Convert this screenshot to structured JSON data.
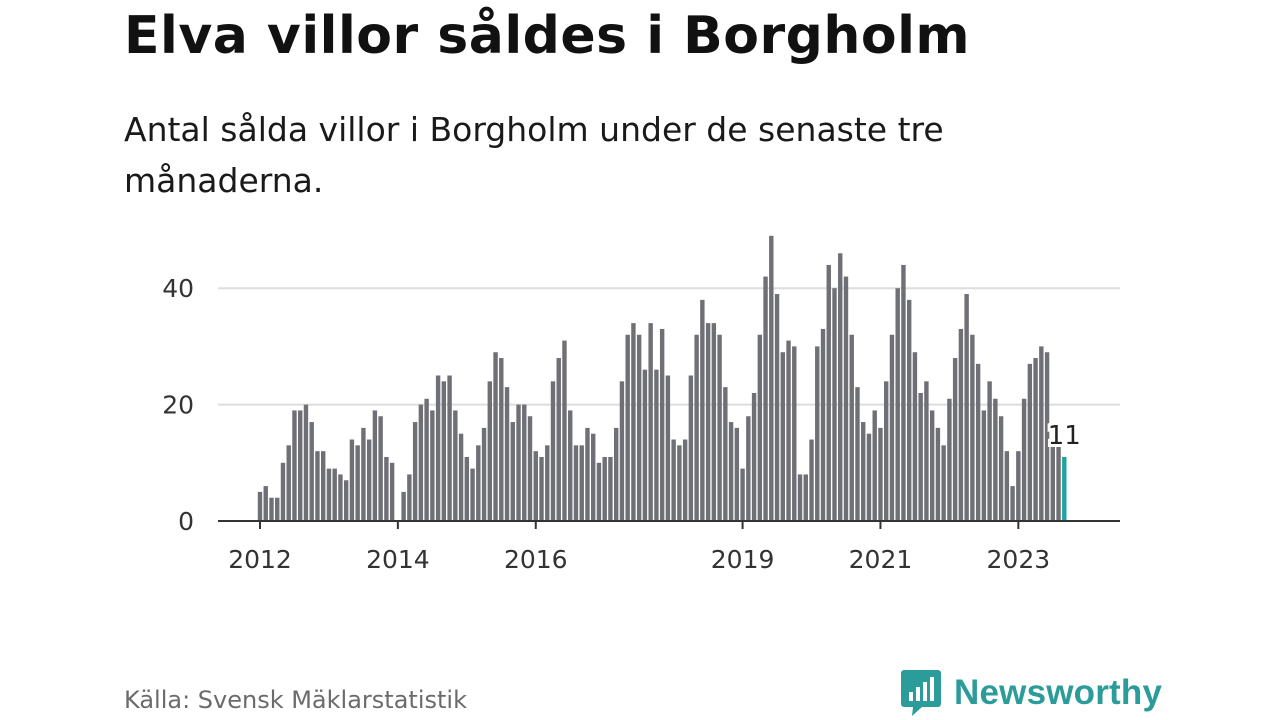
{
  "title": "Elva villor såldes i Borgholm",
  "subtitle": "Antal sålda villor i Borgholm under de senaste tre månaderna.",
  "source": "Källa: Svensk Mäklarstatistik",
  "brand": {
    "name": "Newsworthy",
    "icon": "newsworthy-logo-icon"
  },
  "colors": {
    "bar": "#6f6f76",
    "highlight": "#1fa3a0",
    "grid": "#dddddd",
    "axis": "#333333",
    "text": "#333333"
  },
  "chart_data": {
    "type": "bar",
    "title": "Elva villor såldes i Borgholm",
    "xlabel": "",
    "ylabel": "",
    "ylim": [
      0,
      50
    ],
    "yticks": [
      0,
      20,
      40
    ],
    "x_start": "2012-01",
    "xticks": [
      {
        "label": "2012",
        "index": 0
      },
      {
        "label": "2014",
        "index": 24
      },
      {
        "label": "2016",
        "index": 48
      },
      {
        "label": "2019",
        "index": 84
      },
      {
        "label": "2021",
        "index": 108
      },
      {
        "label": "2023",
        "index": 132
      }
    ],
    "values": [
      5,
      6,
      4,
      4,
      10,
      13,
      19,
      19,
      20,
      17,
      12,
      12,
      9,
      9,
      8,
      7,
      14,
      13,
      16,
      14,
      19,
      18,
      11,
      10,
      0,
      5,
      8,
      17,
      20,
      21,
      19,
      25,
      24,
      25,
      19,
      15,
      11,
      9,
      13,
      16,
      24,
      29,
      28,
      23,
      17,
      20,
      20,
      18,
      12,
      11,
      13,
      24,
      28,
      31,
      19,
      13,
      13,
      16,
      15,
      10,
      11,
      11,
      16,
      24,
      32,
      34,
      32,
      26,
      34,
      26,
      33,
      25,
      14,
      13,
      14,
      25,
      32,
      38,
      34,
      34,
      32,
      23,
      17,
      16,
      9,
      18,
      22,
      32,
      42,
      49,
      39,
      29,
      31,
      30,
      8,
      8,
      14,
      30,
      33,
      44,
      40,
      46,
      42,
      32,
      23,
      17,
      15,
      19,
      16,
      24,
      32,
      40,
      44,
      38,
      29,
      22,
      24,
      19,
      16,
      13,
      21,
      28,
      33,
      39,
      32,
      27,
      19,
      24,
      21,
      18,
      12,
      6,
      12,
      21,
      27,
      28,
      30,
      29,
      14,
      14,
      11
    ],
    "highlight_index": 140,
    "annotation": "11"
  }
}
